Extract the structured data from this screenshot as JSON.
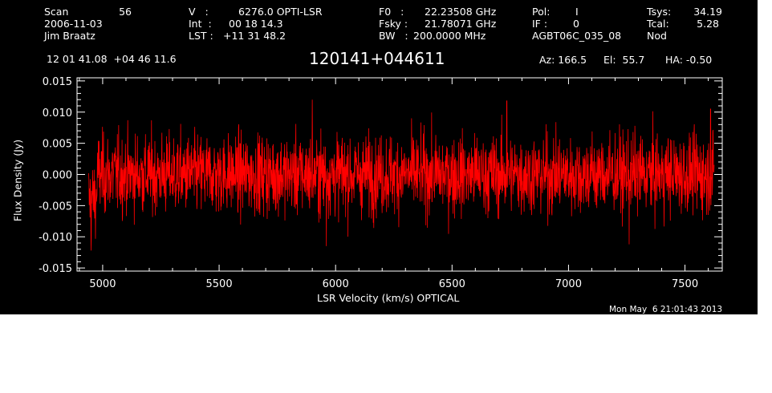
{
  "header": {
    "scan_label": "Scan",
    "scan_value": "56",
    "date": "2006-11-03",
    "observer": "Jim Braatz",
    "v_label": "V   :",
    "v_value": "6276.0 OPTI-LSR",
    "int_label": "Int  :",
    "int_value": "00 18 14.3",
    "lst_label": "LST :",
    "lst_value": "+11 31 48.2",
    "f0_label": "F0   :",
    "f0_value": "22.23508 GHz",
    "fsky_label": "Fsky :",
    "fsky_value": "21.78071 GHz",
    "bw_label": "BW   :",
    "bw_value": "200.0000 MHz",
    "pol_label": "Pol:",
    "pol_value": "I",
    "if_label": "IF :",
    "if_value": "0",
    "project": "AGBT06C_035_08",
    "tsys_label": "Tsys:",
    "tsys_value": "34.19",
    "tcal_label": "Tcal:",
    "tcal_value": "5.28",
    "proc": "Nod",
    "coords": "12 01 41.08  +04 46 11.6",
    "source": "120141+044611",
    "az": "Az: 166.5",
    "el": "El:  55.7",
    "ha": "HA: -0.50"
  },
  "footer": {
    "timestamp": "Mon May  6 21:01:43 2013"
  },
  "colors": {
    "background": "#000000",
    "axes": "#ffffff",
    "trace": "#ff0000"
  },
  "chart_data": {
    "type": "line",
    "title": "120141+044611",
    "xlabel": "LSR Velocity (km/s) OPTICAL",
    "ylabel": "Flux Density (Jy)",
    "xlim": [
      4890,
      7660
    ],
    "ylim": [
      -0.0155,
      0.0155
    ],
    "xticks": [
      5000,
      5500,
      6000,
      6500,
      7000,
      7500
    ],
    "xtick_labels": [
      "5000",
      "5500",
      "6000",
      "6500",
      "7000",
      "7500"
    ],
    "yticks": [
      -0.015,
      -0.01,
      -0.005,
      0.0,
      0.005,
      0.01,
      0.015
    ],
    "ytick_labels": [
      "-0.015",
      "-0.010",
      "-0.005",
      "0.000",
      "0.005",
      "0.010",
      "0.015"
    ],
    "grid": false,
    "series": [
      {
        "color": "#ff0000",
        "x_start": 4940,
        "x_end": 7625,
        "noise_rms_approx": 0.0035,
        "note_peaks": [
          {
            "x": 4950,
            "y": -0.0122
          },
          {
            "x": 5960,
            "y": -0.0115
          },
          {
            "x": 5900,
            "y": 0.012
          },
          {
            "x": 6735,
            "y": 0.0118
          },
          {
            "x": 7260,
            "y": -0.0112
          },
          {
            "x": 7610,
            "y": 0.0105
          }
        ]
      }
    ]
  }
}
